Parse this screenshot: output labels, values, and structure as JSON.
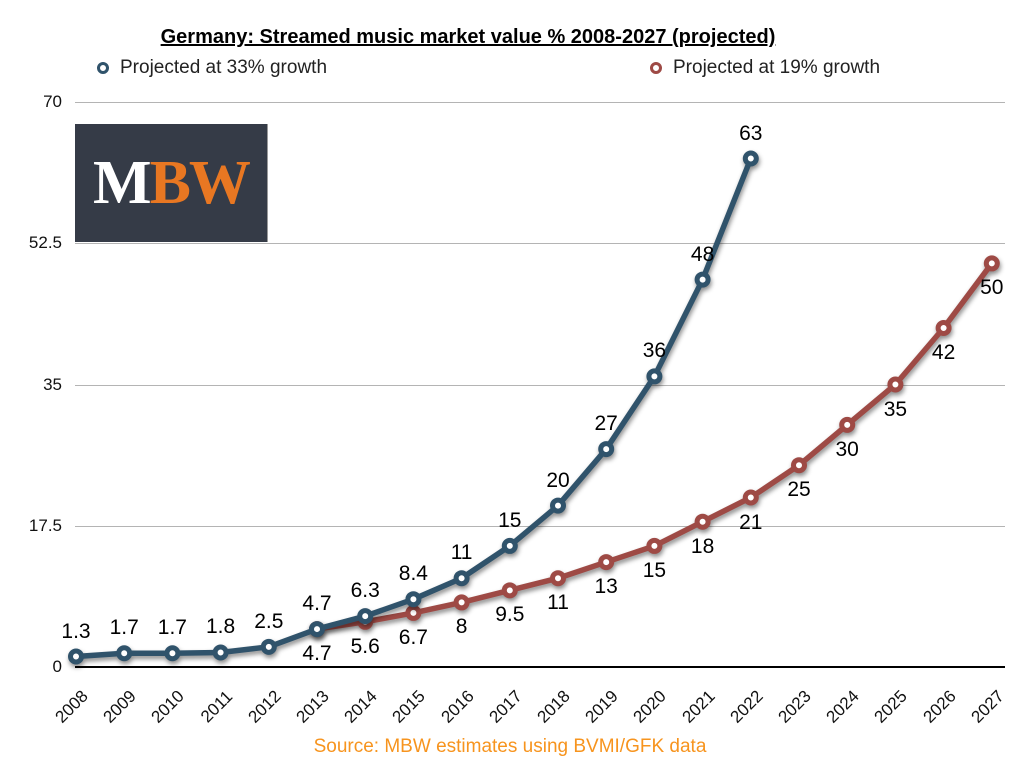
{
  "title": "Germany: Streamed music market value % 2008-2027 (projected)",
  "source": "Source: MBW estimates using BVMI/GFK data",
  "logo": {
    "text_white": "M",
    "text_orange": "BW"
  },
  "colors": {
    "series_33": "#30536b",
    "series_19": "#9e4a45",
    "grid": "#b4b4b4",
    "axis": "#000000",
    "accent_orange": "#f7941e",
    "logo_background": "#353b47",
    "logo_orange": "#e87722"
  },
  "legend": [
    {
      "label": "Projected at 33% growth"
    },
    {
      "label": "Projected at 19% growth"
    }
  ],
  "chart_data": {
    "type": "line",
    "title": "Germany: Streamed music market value % 2008-2027 (projected)",
    "x": [
      2008,
      2009,
      2010,
      2011,
      2012,
      2013,
      2014,
      2015,
      2016,
      2017,
      2018,
      2019,
      2020,
      2021,
      2022,
      2023,
      2024,
      2025,
      2026,
      2027
    ],
    "series": [
      {
        "name": "Projected at 33% growth",
        "color": "#30536b",
        "start_index": 0,
        "values": [
          1.3,
          1.7,
          1.7,
          1.8,
          2.5,
          4.7,
          6.3,
          8.4,
          11,
          15,
          20,
          27,
          36,
          48,
          63
        ],
        "label_position": "above"
      },
      {
        "name": "Projected at 19% growth",
        "color": "#9e4a45",
        "start_index": 5,
        "values": [
          4.7,
          5.6,
          6.7,
          8,
          9.5,
          11,
          13,
          15,
          18,
          21,
          25,
          30,
          35,
          42,
          50
        ],
        "label_position": "below"
      }
    ],
    "ylim": [
      0,
      70
    ],
    "yticks": [
      0,
      17.5,
      35,
      52.5,
      70
    ],
    "grid": true,
    "legend_position": "top",
    "xlabel": "",
    "ylabel": ""
  }
}
